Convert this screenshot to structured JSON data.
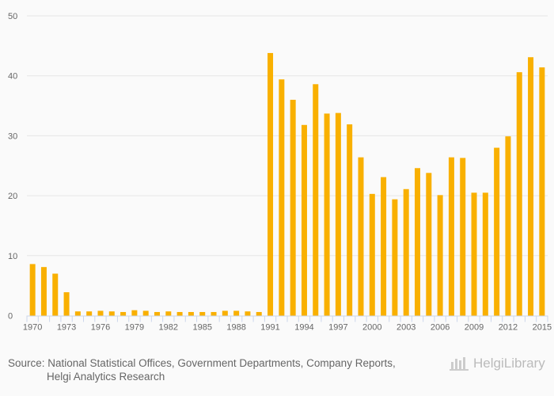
{
  "chart_data": {
    "type": "bar",
    "title": "",
    "xlabel": "",
    "ylabel": "",
    "ylim": [
      0,
      50
    ],
    "yticks": [
      0,
      10,
      20,
      30,
      40,
      50
    ],
    "grid": true,
    "bar_color": "#f9b000",
    "categories": [
      1970,
      1971,
      1972,
      1973,
      1974,
      1975,
      1976,
      1977,
      1978,
      1979,
      1980,
      1981,
      1982,
      1983,
      1984,
      1985,
      1986,
      1987,
      1988,
      1989,
      1990,
      1991,
      1992,
      1993,
      1994,
      1995,
      1996,
      1997,
      1998,
      1999,
      2000,
      2001,
      2002,
      2003,
      2004,
      2005,
      2006,
      2007,
      2008,
      2009,
      2010,
      2011,
      2012,
      2013,
      2014,
      2015
    ],
    "values": [
      8.6,
      8.1,
      7.0,
      3.9,
      0.7,
      0.7,
      0.8,
      0.7,
      0.6,
      0.9,
      0.8,
      0.6,
      0.7,
      0.6,
      0.6,
      0.6,
      0.6,
      0.8,
      0.8,
      0.7,
      0.6,
      43.8,
      39.4,
      36.0,
      31.8,
      38.6,
      33.7,
      33.8,
      31.9,
      26.4,
      20.3,
      23.1,
      19.4,
      21.1,
      24.6,
      23.8,
      20.1,
      26.4,
      26.3,
      20.5,
      20.5,
      28.0,
      29.9,
      40.6,
      43.1,
      41.4
    ],
    "xtick_labels": [
      "1970",
      "1973",
      "1976",
      "1979",
      "1982",
      "1985",
      "1988",
      "1991",
      "1994",
      "1997",
      "2000",
      "2003",
      "2006",
      "2009",
      "2012",
      "2015"
    ]
  },
  "footer": {
    "source_line1": "Source: National Statistical Offices, Government Departments, Company Reports,",
    "source_line2": "Helgi Analytics Research",
    "logo_text": "HelgiLibrary"
  }
}
